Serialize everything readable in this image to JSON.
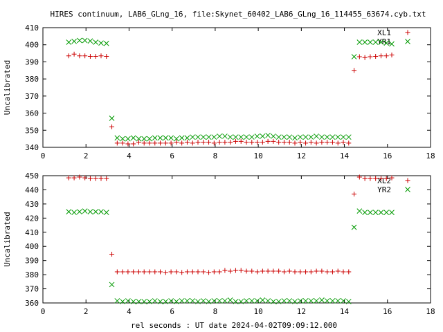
{
  "title": "HIRES continuum, LAB6_GLng_16, file:Skynet_60402_LAB6_GLng_16_114455_63674.cyb.txt",
  "xlabel": "rel seconds : UT date 2024-04-02T09:09:12.000",
  "chart_data": [
    {
      "type": "scatter",
      "ylabel": "Uncalibrated",
      "xlim": [
        0,
        18
      ],
      "ylim": [
        340,
        410
      ],
      "xticks": [
        0,
        2,
        4,
        6,
        8,
        10,
        12,
        14,
        16,
        18
      ],
      "yticks": [
        340,
        350,
        360,
        370,
        380,
        390,
        400,
        410
      ],
      "legend_position": "top-right",
      "series": [
        {
          "name": "XL1",
          "marker": "plus",
          "color": "#cc0000",
          "points": [
            [
              1.2,
              393.5
            ],
            [
              1.45,
              394.5
            ],
            [
              1.7,
              393.5
            ],
            [
              1.95,
              393.5
            ],
            [
              2.2,
              393.2
            ],
            [
              2.45,
              393.2
            ],
            [
              2.7,
              393.5
            ],
            [
              2.95,
              393.2
            ],
            [
              3.2,
              352
            ],
            [
              3.45,
              342.5
            ],
            [
              3.7,
              342.5
            ],
            [
              3.95,
              342
            ],
            [
              4.2,
              342
            ],
            [
              4.45,
              343
            ],
            [
              4.7,
              342.5
            ],
            [
              4.95,
              342.5
            ],
            [
              5.2,
              342.5
            ],
            [
              5.45,
              342.5
            ],
            [
              5.7,
              342.5
            ],
            [
              5.95,
              342.5
            ],
            [
              6.2,
              343
            ],
            [
              6.45,
              342.5
            ],
            [
              6.7,
              343
            ],
            [
              6.95,
              342.5
            ],
            [
              7.2,
              343
            ],
            [
              7.45,
              343
            ],
            [
              7.7,
              343
            ],
            [
              7.95,
              342.5
            ],
            [
              8.2,
              343
            ],
            [
              8.45,
              343
            ],
            [
              8.7,
              343
            ],
            [
              8.95,
              343.5
            ],
            [
              9.2,
              343.5
            ],
            [
              9.45,
              343
            ],
            [
              9.7,
              343
            ],
            [
              9.95,
              343
            ],
            [
              10.2,
              343
            ],
            [
              10.45,
              343.5
            ],
            [
              10.7,
              343.5
            ],
            [
              10.95,
              343
            ],
            [
              11.2,
              343
            ],
            [
              11.45,
              343
            ],
            [
              11.7,
              342.5
            ],
            [
              11.95,
              343
            ],
            [
              12.2,
              342.5
            ],
            [
              12.45,
              343
            ],
            [
              12.7,
              342.5
            ],
            [
              12.95,
              343
            ],
            [
              13.2,
              343
            ],
            [
              13.45,
              343
            ],
            [
              13.7,
              342.5
            ],
            [
              13.95,
              343
            ],
            [
              14.2,
              342.5
            ],
            [
              14.45,
              385
            ],
            [
              14.7,
              393
            ],
            [
              14.95,
              392.5
            ],
            [
              15.2,
              393
            ],
            [
              15.45,
              393.2
            ],
            [
              15.7,
              393.5
            ],
            [
              15.95,
              393.5
            ],
            [
              16.2,
              394
            ]
          ]
        },
        {
          "name": "YR1",
          "marker": "cross",
          "color": "#009900",
          "points": [
            [
              1.2,
              401.5
            ],
            [
              1.45,
              402
            ],
            [
              1.7,
              402.5
            ],
            [
              1.95,
              402.5
            ],
            [
              2.2,
              402.2
            ],
            [
              2.45,
              401.5
            ],
            [
              2.7,
              401
            ],
            [
              2.95,
              400.8
            ],
            [
              3.2,
              357
            ],
            [
              3.45,
              345.5
            ],
            [
              3.7,
              345
            ],
            [
              3.95,
              345
            ],
            [
              4.2,
              345.5
            ],
            [
              4.45,
              345
            ],
            [
              4.7,
              345
            ],
            [
              4.95,
              345
            ],
            [
              5.2,
              345.5
            ],
            [
              5.45,
              345.5
            ],
            [
              5.7,
              345.5
            ],
            [
              5.95,
              345.5
            ],
            [
              6.2,
              345
            ],
            [
              6.45,
              345.5
            ],
            [
              6.7,
              345.5
            ],
            [
              6.95,
              346
            ],
            [
              7.2,
              346
            ],
            [
              7.45,
              346
            ],
            [
              7.7,
              346
            ],
            [
              7.95,
              346
            ],
            [
              8.2,
              346.5
            ],
            [
              8.45,
              346.5
            ],
            [
              8.7,
              346
            ],
            [
              8.95,
              346
            ],
            [
              9.2,
              346
            ],
            [
              9.45,
              346
            ],
            [
              9.7,
              346
            ],
            [
              9.95,
              346.5
            ],
            [
              10.2,
              346.5
            ],
            [
              10.45,
              347
            ],
            [
              10.7,
              346.5
            ],
            [
              10.95,
              346
            ],
            [
              11.2,
              346
            ],
            [
              11.45,
              346
            ],
            [
              11.7,
              345.5
            ],
            [
              11.95,
              346
            ],
            [
              12.2,
              346
            ],
            [
              12.45,
              346
            ],
            [
              12.7,
              346.5
            ],
            [
              12.95,
              346
            ],
            [
              13.2,
              346
            ],
            [
              13.45,
              346
            ],
            [
              13.7,
              346
            ],
            [
              13.95,
              346
            ],
            [
              14.2,
              346
            ],
            [
              14.45,
              393
            ],
            [
              14.7,
              401.5
            ],
            [
              14.95,
              401.5
            ],
            [
              15.2,
              401.5
            ],
            [
              15.45,
              401.5
            ],
            [
              15.7,
              401.5
            ],
            [
              15.95,
              401
            ],
            [
              16.2,
              400.5
            ]
          ]
        }
      ]
    },
    {
      "type": "scatter",
      "ylabel": "Uncalibrated",
      "xlim": [
        0,
        18
      ],
      "ylim": [
        360,
        450
      ],
      "xticks": [
        0,
        2,
        4,
        6,
        8,
        10,
        12,
        14,
        16,
        18
      ],
      "yticks": [
        360,
        370,
        380,
        390,
        400,
        410,
        420,
        430,
        440,
        450
      ],
      "legend_position": "top-right",
      "series": [
        {
          "name": "XL2",
          "marker": "plus",
          "color": "#cc0000",
          "points": [
            [
              1.2,
              448.5
            ],
            [
              1.45,
              448.5
            ],
            [
              1.7,
              449
            ],
            [
              1.95,
              448.5
            ],
            [
              2.2,
              448
            ],
            [
              2.45,
              448
            ],
            [
              2.7,
              448
            ],
            [
              2.95,
              448
            ],
            [
              3.2,
              394.5
            ],
            [
              3.45,
              382
            ],
            [
              3.7,
              382
            ],
            [
              3.95,
              382
            ],
            [
              4.2,
              382
            ],
            [
              4.45,
              382
            ],
            [
              4.7,
              382
            ],
            [
              4.95,
              382
            ],
            [
              5.2,
              382
            ],
            [
              5.45,
              382
            ],
            [
              5.7,
              381.5
            ],
            [
              5.95,
              382
            ],
            [
              6.2,
              382
            ],
            [
              6.45,
              381.5
            ],
            [
              6.7,
              382
            ],
            [
              6.95,
              382
            ],
            [
              7.2,
              382
            ],
            [
              7.45,
              382
            ],
            [
              7.7,
              381.5
            ],
            [
              7.95,
              382
            ],
            [
              8.2,
              382
            ],
            [
              8.45,
              383
            ],
            [
              8.7,
              382.5
            ],
            [
              8.95,
              383
            ],
            [
              9.2,
              383
            ],
            [
              9.45,
              382.5
            ],
            [
              9.7,
              382.5
            ],
            [
              9.95,
              382
            ],
            [
              10.2,
              382.5
            ],
            [
              10.45,
              382.5
            ],
            [
              10.7,
              382.5
            ],
            [
              10.95,
              382.5
            ],
            [
              11.2,
              382
            ],
            [
              11.45,
              382.5
            ],
            [
              11.7,
              382
            ],
            [
              11.95,
              382
            ],
            [
              12.2,
              382
            ],
            [
              12.45,
              382
            ],
            [
              12.7,
              382.5
            ],
            [
              12.95,
              382.5
            ],
            [
              13.2,
              382
            ],
            [
              13.45,
              382
            ],
            [
              13.7,
              382.5
            ],
            [
              13.95,
              382
            ],
            [
              14.2,
              382
            ],
            [
              14.45,
              437
            ],
            [
              14.7,
              449
            ],
            [
              14.95,
              448
            ],
            [
              15.2,
              448
            ],
            [
              15.45,
              448
            ],
            [
              15.7,
              448
            ],
            [
              15.95,
              448
            ],
            [
              16.2,
              448.5
            ]
          ]
        },
        {
          "name": "YR2",
          "marker": "cross",
          "color": "#009900",
          "points": [
            [
              1.2,
              424.5
            ],
            [
              1.45,
              424
            ],
            [
              1.7,
              424.5
            ],
            [
              1.95,
              425
            ],
            [
              2.2,
              424.5
            ],
            [
              2.45,
              424.5
            ],
            [
              2.7,
              424.5
            ],
            [
              2.95,
              424
            ],
            [
              3.2,
              373
            ],
            [
              3.45,
              361.5
            ],
            [
              3.7,
              361
            ],
            [
              3.95,
              361.5
            ],
            [
              4.2,
              361
            ],
            [
              4.45,
              361
            ],
            [
              4.7,
              361
            ],
            [
              4.95,
              361
            ],
            [
              5.2,
              361.5
            ],
            [
              5.45,
              361
            ],
            [
              5.7,
              361
            ],
            [
              5.95,
              361.5
            ],
            [
              6.2,
              361
            ],
            [
              6.45,
              361.5
            ],
            [
              6.7,
              361.5
            ],
            [
              6.95,
              361.5
            ],
            [
              7.2,
              361
            ],
            [
              7.45,
              361.5
            ],
            [
              7.7,
              361
            ],
            [
              7.95,
              361.5
            ],
            [
              8.2,
              361.5
            ],
            [
              8.45,
              361.5
            ],
            [
              8.7,
              362
            ],
            [
              8.95,
              361
            ],
            [
              9.2,
              361
            ],
            [
              9.45,
              361.5
            ],
            [
              9.7,
              361.5
            ],
            [
              9.95,
              361.5
            ],
            [
              10.2,
              362
            ],
            [
              10.45,
              361.5
            ],
            [
              10.7,
              361
            ],
            [
              10.95,
              361
            ],
            [
              11.2,
              361.5
            ],
            [
              11.45,
              361.5
            ],
            [
              11.7,
              361
            ],
            [
              11.95,
              361.5
            ],
            [
              12.2,
              361.5
            ],
            [
              12.45,
              361.5
            ],
            [
              12.7,
              361.5
            ],
            [
              12.95,
              362
            ],
            [
              13.2,
              361.5
            ],
            [
              13.45,
              361.5
            ],
            [
              13.7,
              361.5
            ],
            [
              13.95,
              361.5
            ],
            [
              14.2,
              361
            ],
            [
              14.45,
              413.5
            ],
            [
              14.7,
              425
            ],
            [
              14.95,
              424
            ],
            [
              15.2,
              424
            ],
            [
              15.45,
              424
            ],
            [
              15.7,
              424
            ],
            [
              15.95,
              424
            ],
            [
              16.2,
              424
            ]
          ]
        }
      ]
    }
  ]
}
